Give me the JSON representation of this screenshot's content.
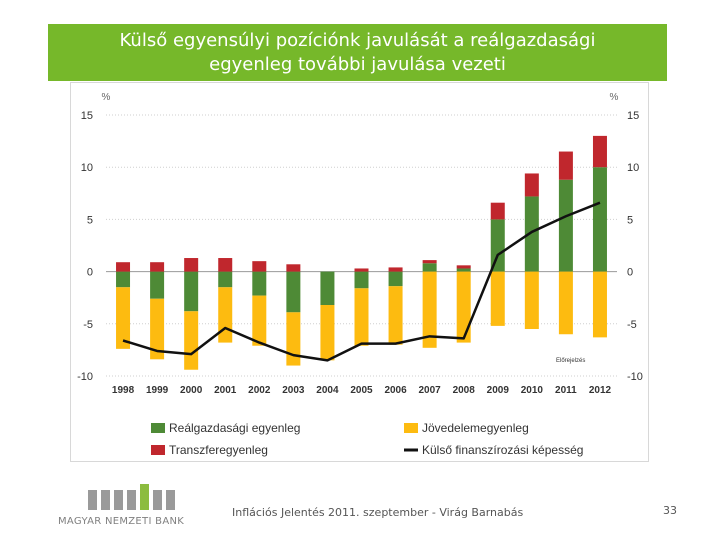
{
  "title": {
    "line1": "Külső egyensúlyi pozíciónk javulását a reálgazdasági",
    "line2": "egyenleg további javulása vezeti"
  },
  "chart_data": {
    "type": "bar",
    "stacked": true,
    "categories": [
      "1998",
      "1999",
      "2000",
      "2001",
      "2002",
      "2003",
      "2004",
      "2005",
      "2006",
      "2007",
      "2008",
      "2009",
      "2010",
      "2011",
      "2012"
    ],
    "series": [
      {
        "name": "Reálgazdasági egyenleg",
        "kind": "bar",
        "color": "#4e8a36",
        "values": [
          -1.5,
          -2.6,
          -3.8,
          -1.5,
          -2.3,
          -3.9,
          -3.2,
          -1.6,
          -1.4,
          0.8,
          0.3,
          5.0,
          7.2,
          8.8,
          10.0
        ]
      },
      {
        "name": "Transzferegyenleg",
        "kind": "bar",
        "color": "#c0272d",
        "values": [
          0.9,
          0.9,
          1.3,
          1.3,
          1.0,
          0.7,
          0.0,
          0.3,
          0.4,
          0.3,
          0.3,
          1.6,
          2.2,
          2.7,
          3.0
        ]
      },
      {
        "name": "Jövedelemegyenleg",
        "kind": "bar",
        "color": "#fdbb10",
        "values": [
          -5.9,
          -5.8,
          -5.6,
          -5.3,
          -4.8,
          -5.1,
          -5.3,
          -5.5,
          -5.6,
          -7.3,
          -6.8,
          -5.2,
          -5.5,
          -6.0,
          -6.3
        ]
      },
      {
        "name": "Külső finanszírozási képesség",
        "kind": "line",
        "color": "#111111",
        "values": [
          -6.6,
          -7.6,
          -7.9,
          -5.4,
          -6.8,
          -8.0,
          -8.5,
          -6.9,
          -6.9,
          -6.2,
          -6.4,
          1.6,
          3.8,
          5.3,
          6.6
        ]
      }
    ],
    "legend_order": [
      "Reálgazdasági egyenleg",
      "Jövedelemegyenleg",
      "Transzferegyenleg",
      "Külső finanszírozási képesség"
    ],
    "ylim": [
      -10,
      15
    ],
    "yticks": [
      "15",
      "10",
      "5",
      "0",
      "-5",
      "-10"
    ],
    "ylabel_left": "%",
    "ylabel_right": "%",
    "annotation": "Előrejelzés",
    "legend_position": "bottom"
  },
  "footer": {
    "logo_text": "MAGYAR NEMZETI BANK",
    "text": "Inflációs Jelentés 2011. szeptember - Virág Barnabás",
    "page": "33"
  }
}
